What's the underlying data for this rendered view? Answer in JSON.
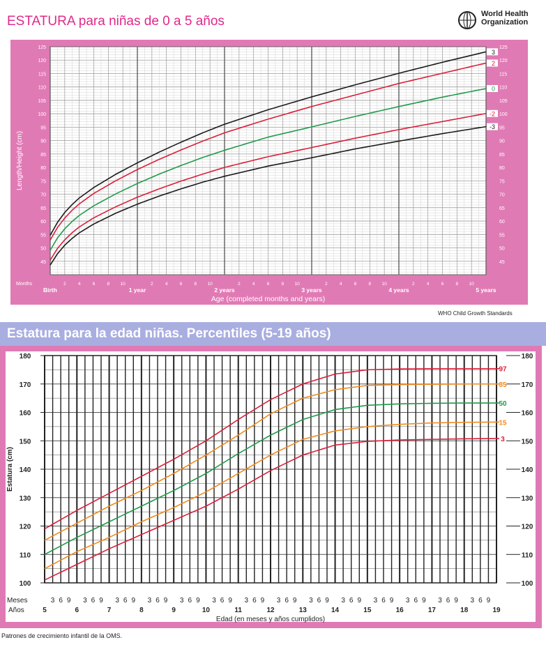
{
  "top": {
    "title": "ESTATURA para niñas de 0 a 5 años",
    "who_line1": "World Health",
    "who_line2": "Organization",
    "credit": "WHO Child Growth Standards",
    "chart_data": {
      "type": "line",
      "title": "ESTATURA para niñas de 0 a 5 años",
      "xlabel": "Age (completed months and years)",
      "ylabel": "Length/Height (cm)",
      "xlim": [
        0,
        60
      ],
      "ylim": [
        40,
        125
      ],
      "y_ticks": [
        45,
        50,
        55,
        60,
        65,
        70,
        75,
        80,
        85,
        90,
        95,
        100,
        105,
        110,
        115,
        120,
        125
      ],
      "x_row_label": "Months",
      "x_month_labels": [
        "2",
        "4",
        "6",
        "8",
        "10"
      ],
      "x_year_labels": [
        {
          "at": 0,
          "label": "Birth"
        },
        {
          "at": 12,
          "label": "1 year"
        },
        {
          "at": 24,
          "label": "2 years"
        },
        {
          "at": 36,
          "label": "3 years"
        },
        {
          "at": 48,
          "label": "4 years"
        },
        {
          "at": 60,
          "label": "5 years"
        }
      ],
      "x": [
        0,
        1,
        2,
        3,
        4,
        6,
        9,
        12,
        15,
        18,
        21,
        24,
        30,
        36,
        42,
        48,
        54,
        60
      ],
      "series": [
        {
          "name": "3",
          "color": "#1a1a1a",
          "values": [
            54.7,
            59.5,
            63.2,
            66.1,
            68.6,
            72.5,
            77.4,
            81.7,
            85.7,
            89.4,
            92.9,
            96.1,
            101.5,
            106.3,
            110.8,
            115.1,
            119.2,
            123.1
          ]
        },
        {
          "name": "2",
          "color": "#d8203a",
          "values": [
            52.9,
            57.6,
            61.1,
            64.0,
            66.4,
            70.3,
            75.0,
            79.2,
            83.0,
            86.5,
            89.8,
            92.9,
            98.0,
            102.7,
            107.0,
            111.3,
            115.1,
            118.9
          ]
        },
        {
          "name": "0",
          "color": "#1f9a49",
          "values": [
            49.1,
            53.7,
            57.1,
            59.8,
            62.1,
            65.7,
            70.1,
            74.0,
            77.5,
            80.7,
            83.7,
            86.4,
            91.3,
            95.1,
            99.0,
            102.7,
            106.2,
            109.4
          ]
        },
        {
          "name": "-2",
          "color": "#d8203a",
          "values": [
            45.4,
            49.8,
            53.0,
            55.6,
            57.8,
            61.2,
            65.3,
            68.9,
            72.0,
            74.9,
            77.5,
            80.0,
            84.0,
            87.4,
            90.9,
            94.1,
            97.1,
            100.1
          ]
        },
        {
          "name": "-3",
          "color": "#1a1a1a",
          "values": [
            43.6,
            47.8,
            51.0,
            53.5,
            55.6,
            58.9,
            62.9,
            66.3,
            69.3,
            72.0,
            74.5,
            76.7,
            80.5,
            83.6,
            86.9,
            89.8,
            92.6,
            95.2
          ]
        }
      ]
    }
  },
  "bottom": {
    "title": "Estatura para la edad niñas. Percentiles (5-19 años)",
    "credit": "Patrones de crecimiento infantil de la OMS.",
    "chart_data": {
      "type": "line",
      "title": "Estatura para la edad niñas. Percentiles (5-19 años)",
      "xlabel": "Edad (en meses y años cumplidos)",
      "ylabel": "Estatura (cm)",
      "xlim": [
        5,
        19
      ],
      "ylim": [
        100,
        180
      ],
      "y_ticks": [
        100,
        110,
        120,
        130,
        140,
        150,
        160,
        170,
        180
      ],
      "x_row1_label": "Meses",
      "x_row2_label": "Años",
      "x_month_labels": [
        "3",
        "6",
        "9"
      ],
      "x_years": [
        "5",
        "6",
        "7",
        "8",
        "9",
        "10",
        "11",
        "12",
        "13",
        "14",
        "15",
        "16",
        "17",
        "18",
        "19"
      ],
      "x": [
        5,
        6,
        7,
        8,
        9,
        10,
        11,
        12,
        13,
        14,
        15,
        16,
        17,
        18,
        19
      ],
      "series": [
        {
          "name": "97",
          "color": "#d8203a",
          "values": [
            119,
            125.5,
            131.5,
            137.5,
            143.5,
            150,
            157.5,
            164.5,
            170,
            173.5,
            175,
            175.3,
            175.4,
            175.4,
            175.4
          ]
        },
        {
          "name": "85",
          "color": "#f08a1f",
          "values": [
            115,
            121,
            127,
            132.5,
            138.5,
            145,
            152,
            159.5,
            165,
            168,
            169.5,
            169.8,
            169.9,
            170,
            170
          ]
        },
        {
          "name": "50",
          "color": "#1f9a49",
          "values": [
            110,
            116,
            121.5,
            127,
            132.5,
            138.5,
            145.5,
            152,
            157.5,
            161,
            162.5,
            163,
            163.2,
            163.3,
            163.3
          ]
        },
        {
          "name": "15",
          "color": "#f08a1f",
          "values": [
            105,
            111,
            116,
            121.5,
            126.5,
            132,
            138.5,
            145,
            150.5,
            153.5,
            155,
            155.8,
            156.3,
            156.5,
            156.6
          ]
        },
        {
          "name": "3",
          "color": "#d8203a",
          "values": [
            101,
            106.5,
            112,
            117,
            122,
            127,
            133,
            139.5,
            145,
            148.5,
            149.8,
            150.3,
            150.5,
            150.7,
            150.8
          ]
        }
      ]
    }
  }
}
